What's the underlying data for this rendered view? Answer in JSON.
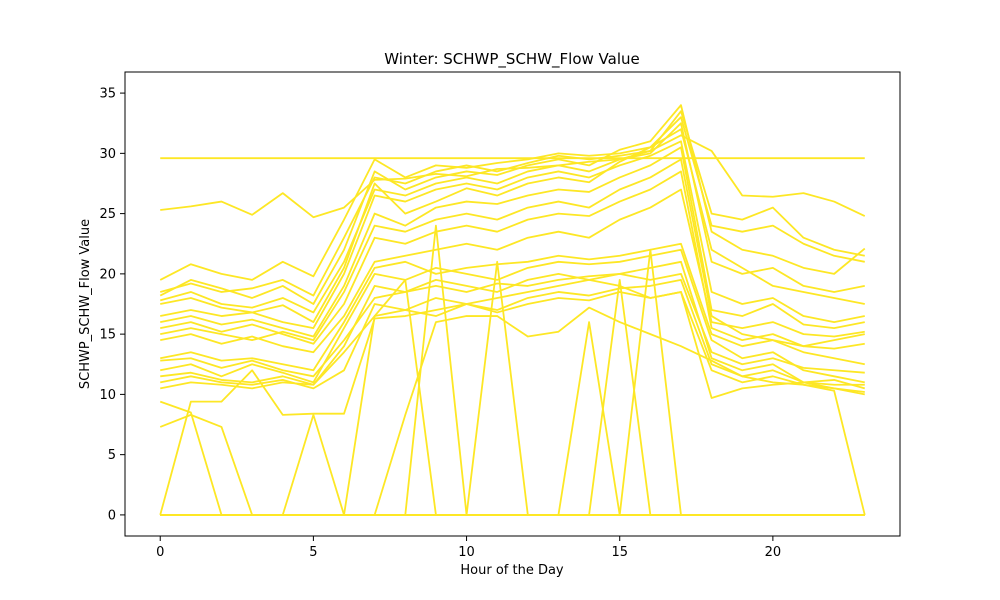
{
  "chart_data": {
    "type": "line",
    "title": "Winter: SCHWP_SCHW_Flow Value",
    "xlabel": "Hour of the Day",
    "ylabel": "SCHWP_SCHW_Flow Value",
    "xlim": [
      -1.15,
      24.15
    ],
    "ylim": [
      -1.75,
      36.75
    ],
    "x_ticks": [
      0,
      5,
      10,
      15,
      20
    ],
    "y_ticks": [
      0,
      5,
      10,
      15,
      20,
      25,
      30,
      35
    ],
    "grid": false,
    "legend": "none",
    "line_color": "#fde725",
    "x": [
      0,
      1,
      2,
      3,
      4,
      5,
      6,
      7,
      8,
      9,
      10,
      11,
      12,
      13,
      14,
      15,
      16,
      17,
      18,
      19,
      20,
      21,
      22,
      23
    ],
    "series": [
      {
        "values": [
          29.6,
          29.6,
          29.6,
          29.6,
          29.6,
          29.6,
          29.6,
          29.6,
          29.6,
          29.6,
          29.6,
          29.6,
          29.6,
          29.6,
          29.6,
          29.6,
          29.6,
          29.6,
          29.6,
          29.6,
          29.6,
          29.6,
          29.6,
          29.6
        ]
      },
      {
        "values": [
          0,
          0,
          0,
          0,
          0,
          0,
          0,
          0,
          0,
          0,
          0,
          0,
          0,
          0,
          0,
          0,
          0,
          0,
          0,
          0,
          0,
          0,
          0,
          0
        ]
      },
      {
        "values": [
          25.3,
          25.6,
          26.0,
          24.9,
          26.7,
          24.7,
          25.5,
          27.8,
          27.9,
          28.3,
          28.1,
          28.7,
          28.8,
          29.0,
          29.3,
          29.5,
          30.2,
          31.5,
          30.2,
          26.5,
          26.4,
          26.7,
          26.0,
          24.8
        ]
      },
      {
        "values": [
          17.5,
          18.0,
          17.2,
          16.8,
          17.4,
          16.0,
          20.5,
          27.5,
          25.0,
          26.0,
          27.1,
          26.5,
          27.5,
          28.0,
          27.6,
          29.3,
          30.5,
          32.0,
          22.0,
          20.5,
          19.0,
          18.5,
          18.0,
          17.5
        ]
      },
      {
        "values": [
          18.2,
          19.5,
          18.8,
          18.0,
          19.0,
          17.5,
          22.0,
          28.5,
          27.0,
          28.0,
          28.5,
          28.2,
          29.0,
          29.5,
          29.0,
          30.3,
          31.0,
          34.0,
          23.5,
          22.0,
          21.5,
          20.5,
          20.0,
          22.1
        ]
      },
      {
        "values": [
          16.0,
          16.5,
          15.8,
          16.2,
          15.5,
          14.8,
          19.0,
          25.0,
          24.0,
          25.5,
          26.0,
          25.8,
          26.5,
          27.0,
          26.8,
          28.0,
          29.0,
          30.5,
          17.0,
          16.5,
          17.5,
          15.8,
          15.5,
          16.0
        ]
      },
      {
        "values": [
          15.0,
          15.5,
          15.0,
          14.5,
          15.2,
          14.5,
          18.5,
          24.0,
          23.5,
          24.5,
          25.0,
          24.5,
          25.5,
          26.0,
          25.5,
          27.0,
          28.0,
          29.5,
          16.5,
          15.0,
          14.5,
          14.0,
          14.5,
          15.0
        ]
      },
      {
        "values": [
          19.5,
          20.8,
          20.0,
          19.5,
          21.0,
          19.8,
          24.5,
          29.5,
          28.0,
          29.0,
          28.8,
          29.2,
          29.5,
          30.0,
          29.8,
          30.0,
          30.5,
          33.0,
          24.0,
          23.5,
          24.0,
          22.5,
          21.5,
          21.0
        ]
      },
      {
        "values": [
          12.0,
          12.5,
          11.5,
          12.5,
          11.8,
          11.0,
          15.5,
          20.0,
          19.5,
          20.5,
          20.0,
          19.5,
          20.5,
          21.0,
          20.8,
          21.0,
          21.5,
          22.0,
          14.5,
          13.0,
          13.5,
          12.0,
          11.5,
          11.0
        ]
      },
      {
        "values": [
          11.5,
          11.8,
          11.2,
          11.0,
          11.5,
          10.8,
          14.0,
          19.0,
          18.5,
          19.5,
          19.0,
          18.5,
          19.5,
          20.0,
          19.5,
          20.0,
          20.5,
          21.0,
          13.0,
          12.0,
          12.5,
          11.0,
          11.2,
          10.5
        ]
      },
      {
        "values": [
          13.0,
          13.5,
          12.8,
          13.0,
          12.5,
          12.0,
          16.0,
          20.5,
          21.0,
          20.0,
          20.5,
          20.8,
          21.0,
          21.5,
          21.2,
          21.5,
          22.0,
          22.5,
          15.0,
          14.0,
          14.5,
          13.5,
          13.0,
          12.5
        ]
      },
      {
        "values": [
          10.5,
          11.0,
          10.8,
          10.5,
          11.0,
          10.8,
          13.5,
          16.5,
          17.0,
          16.5,
          17.5,
          16.8,
          17.5,
          18.0,
          17.8,
          18.5,
          18.0,
          18.5,
          12.0,
          11.0,
          11.5,
          10.8,
          10.5,
          10.2
        ]
      },
      {
        "values": [
          9.4,
          8.5,
          0,
          0,
          0,
          0,
          0,
          0,
          0,
          0,
          0,
          0,
          0,
          0,
          0,
          0,
          0,
          0,
          0,
          0,
          0,
          0,
          0,
          0
        ]
      },
      {
        "values": [
          7.3,
          8.3,
          7.3,
          0,
          0,
          0,
          0,
          0,
          0,
          0,
          0,
          0,
          0,
          0,
          0,
          0,
          0,
          0,
          0,
          0,
          0,
          0,
          0,
          0
        ]
      },
      {
        "values": [
          0,
          9.4,
          9.4,
          12.0,
          8.3,
          8.4,
          8.4,
          16.3,
          16.5,
          17.0,
          17.5,
          18.0,
          18.5,
          19.0,
          19.5,
          19.0,
          18.0,
          18.5,
          9.7,
          10.5,
          10.8,
          11.0,
          10.5,
          10.0
        ]
      },
      {
        "values": [
          0,
          0,
          0,
          0,
          0,
          0,
          0,
          16.5,
          19.5,
          0,
          0,
          0,
          0,
          0,
          0,
          0,
          0,
          0,
          0,
          0,
          0,
          0,
          0,
          0
        ]
      },
      {
        "values": [
          0,
          0,
          0,
          0,
          0,
          0,
          0,
          0,
          0,
          24.0,
          0,
          0,
          0,
          0,
          0,
          0,
          0,
          0,
          0,
          0,
          0,
          0,
          0,
          0
        ]
      },
      {
        "values": [
          0,
          0,
          0,
          0,
          0,
          0,
          0,
          0,
          0,
          0,
          0,
          21.0,
          0,
          0,
          0,
          0,
          0,
          0,
          0,
          0,
          0,
          0,
          0,
          0
        ]
      },
      {
        "values": [
          0,
          0,
          0,
          0,
          0,
          0,
          0,
          0,
          0,
          0,
          0,
          0,
          0,
          0,
          16.0,
          0,
          0,
          0,
          0,
          0,
          0,
          0,
          0,
          0
        ]
      },
      {
        "values": [
          0,
          0,
          0,
          0,
          0,
          0,
          0,
          0,
          0,
          0,
          0,
          0,
          0,
          0,
          0,
          19.5,
          0,
          0,
          0,
          0,
          0,
          0,
          0,
          0
        ]
      },
      {
        "values": [
          0,
          0,
          0,
          0,
          0,
          0,
          0,
          0,
          0,
          0,
          0,
          0,
          0,
          0,
          0,
          0,
          22.0,
          0,
          0,
          0,
          0,
          0,
          0,
          0
        ]
      },
      {
        "values": [
          0,
          0,
          0,
          0,
          0,
          8.3,
          0,
          0,
          0,
          0,
          0,
          0,
          0,
          0,
          0,
          0,
          0,
          0,
          0,
          0,
          0,
          0,
          0,
          0
        ]
      },
      {
        "values": [
          0,
          0,
          0,
          0,
          0,
          0,
          0,
          0,
          8.3,
          16.0,
          16.5,
          16.5,
          14.8,
          15.2,
          17.2,
          16.0,
          15.0,
          14.0,
          12.8,
          11.5,
          11.0,
          10.8,
          10.3,
          0
        ]
      },
      {
        "values": [
          16.5,
          17.0,
          16.5,
          16.8,
          16.0,
          15.5,
          20.0,
          26.5,
          26.0,
          27.0,
          27.5,
          27.0,
          28.0,
          28.5,
          28.0,
          29.0,
          29.8,
          31.0,
          18.5,
          17.5,
          18.0,
          16.5,
          16.0,
          16.5
        ]
      },
      {
        "values": [
          17.8,
          18.5,
          17.5,
          17.2,
          18.0,
          16.8,
          21.0,
          27.0,
          26.5,
          27.5,
          28.0,
          27.5,
          28.5,
          29.0,
          28.5,
          29.5,
          30.0,
          32.5,
          21.0,
          20.0,
          20.5,
          19.0,
          18.5,
          19.0
        ]
      },
      {
        "values": [
          15.5,
          16.0,
          15.2,
          15.8,
          15.0,
          14.2,
          17.5,
          23.0,
          22.5,
          23.5,
          24.0,
          23.5,
          24.5,
          25.0,
          24.8,
          26.0,
          27.0,
          28.5,
          15.5,
          14.5,
          15.0,
          14.0,
          13.8,
          14.2
        ]
      },
      {
        "values": [
          12.8,
          13.0,
          12.2,
          12.8,
          12.0,
          11.5,
          14.5,
          18.0,
          18.5,
          19.0,
          18.5,
          19.2,
          19.0,
          19.5,
          19.8,
          20.0,
          19.5,
          20.0,
          13.5,
          12.5,
          13.0,
          12.2,
          12.0,
          11.8
        ]
      },
      {
        "values": [
          18.5,
          19.2,
          18.5,
          18.8,
          19.5,
          18.2,
          23.0,
          28.0,
          27.5,
          28.5,
          29.0,
          28.5,
          29.2,
          29.8,
          29.5,
          29.8,
          30.2,
          33.5,
          25.0,
          24.5,
          25.5,
          23.0,
          22.0,
          21.5
        ]
      },
      {
        "values": [
          14.5,
          15.0,
          14.2,
          14.8,
          14.0,
          13.5,
          16.5,
          21.0,
          21.5,
          22.0,
          22.5,
          22.0,
          23.0,
          23.5,
          23.0,
          24.5,
          25.5,
          27.0,
          16.0,
          15.5,
          16.0,
          15.0,
          14.8,
          15.2
        ]
      },
      {
        "values": [
          11.0,
          11.5,
          11.0,
          10.8,
          11.2,
          10.5,
          12.0,
          17.5,
          17.0,
          18.0,
          17.5,
          17.0,
          18.0,
          18.5,
          18.2,
          18.8,
          19.0,
          19.5,
          12.5,
          11.5,
          12.0,
          11.0,
          10.8,
          10.8
        ]
      }
    ]
  }
}
